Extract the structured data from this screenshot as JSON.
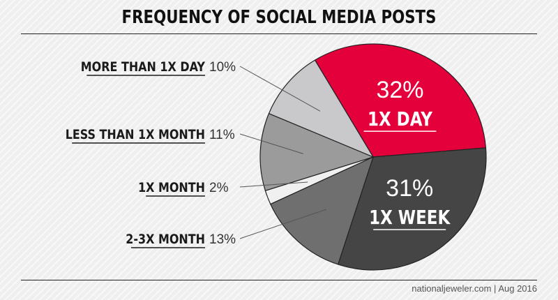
{
  "chart_data": {
    "type": "pie",
    "title": "FREQUENCY OF SOCIAL MEDIA POSTS",
    "slices": [
      {
        "label": "1X DAY",
        "value": 32,
        "display": "32%",
        "color": "#e4003a",
        "label_position": "inside"
      },
      {
        "label": "1X WEEK",
        "value": 31,
        "display": "31%",
        "color": "#454546",
        "label_position": "inside"
      },
      {
        "label": "2-3X MONTH",
        "value": 13,
        "display": "13%",
        "color": "#6f6f70",
        "label_position": "outside-left"
      },
      {
        "label": "1X MONTH",
        "value": 2,
        "display": "2%",
        "color": "#f0f0f0",
        "label_position": "outside-left"
      },
      {
        "label": "LESS THAN 1X MONTH",
        "value": 11,
        "display": "11%",
        "color": "#9b9b9c",
        "label_position": "outside-left"
      },
      {
        "label": "MORE THAN 1X DAY",
        "value": 10,
        "display": "10%",
        "color": "#c9c9cb",
        "label_position": "outside-left"
      }
    ]
  },
  "footer": {
    "source": "nationaljeweler.com | Aug 2016"
  }
}
